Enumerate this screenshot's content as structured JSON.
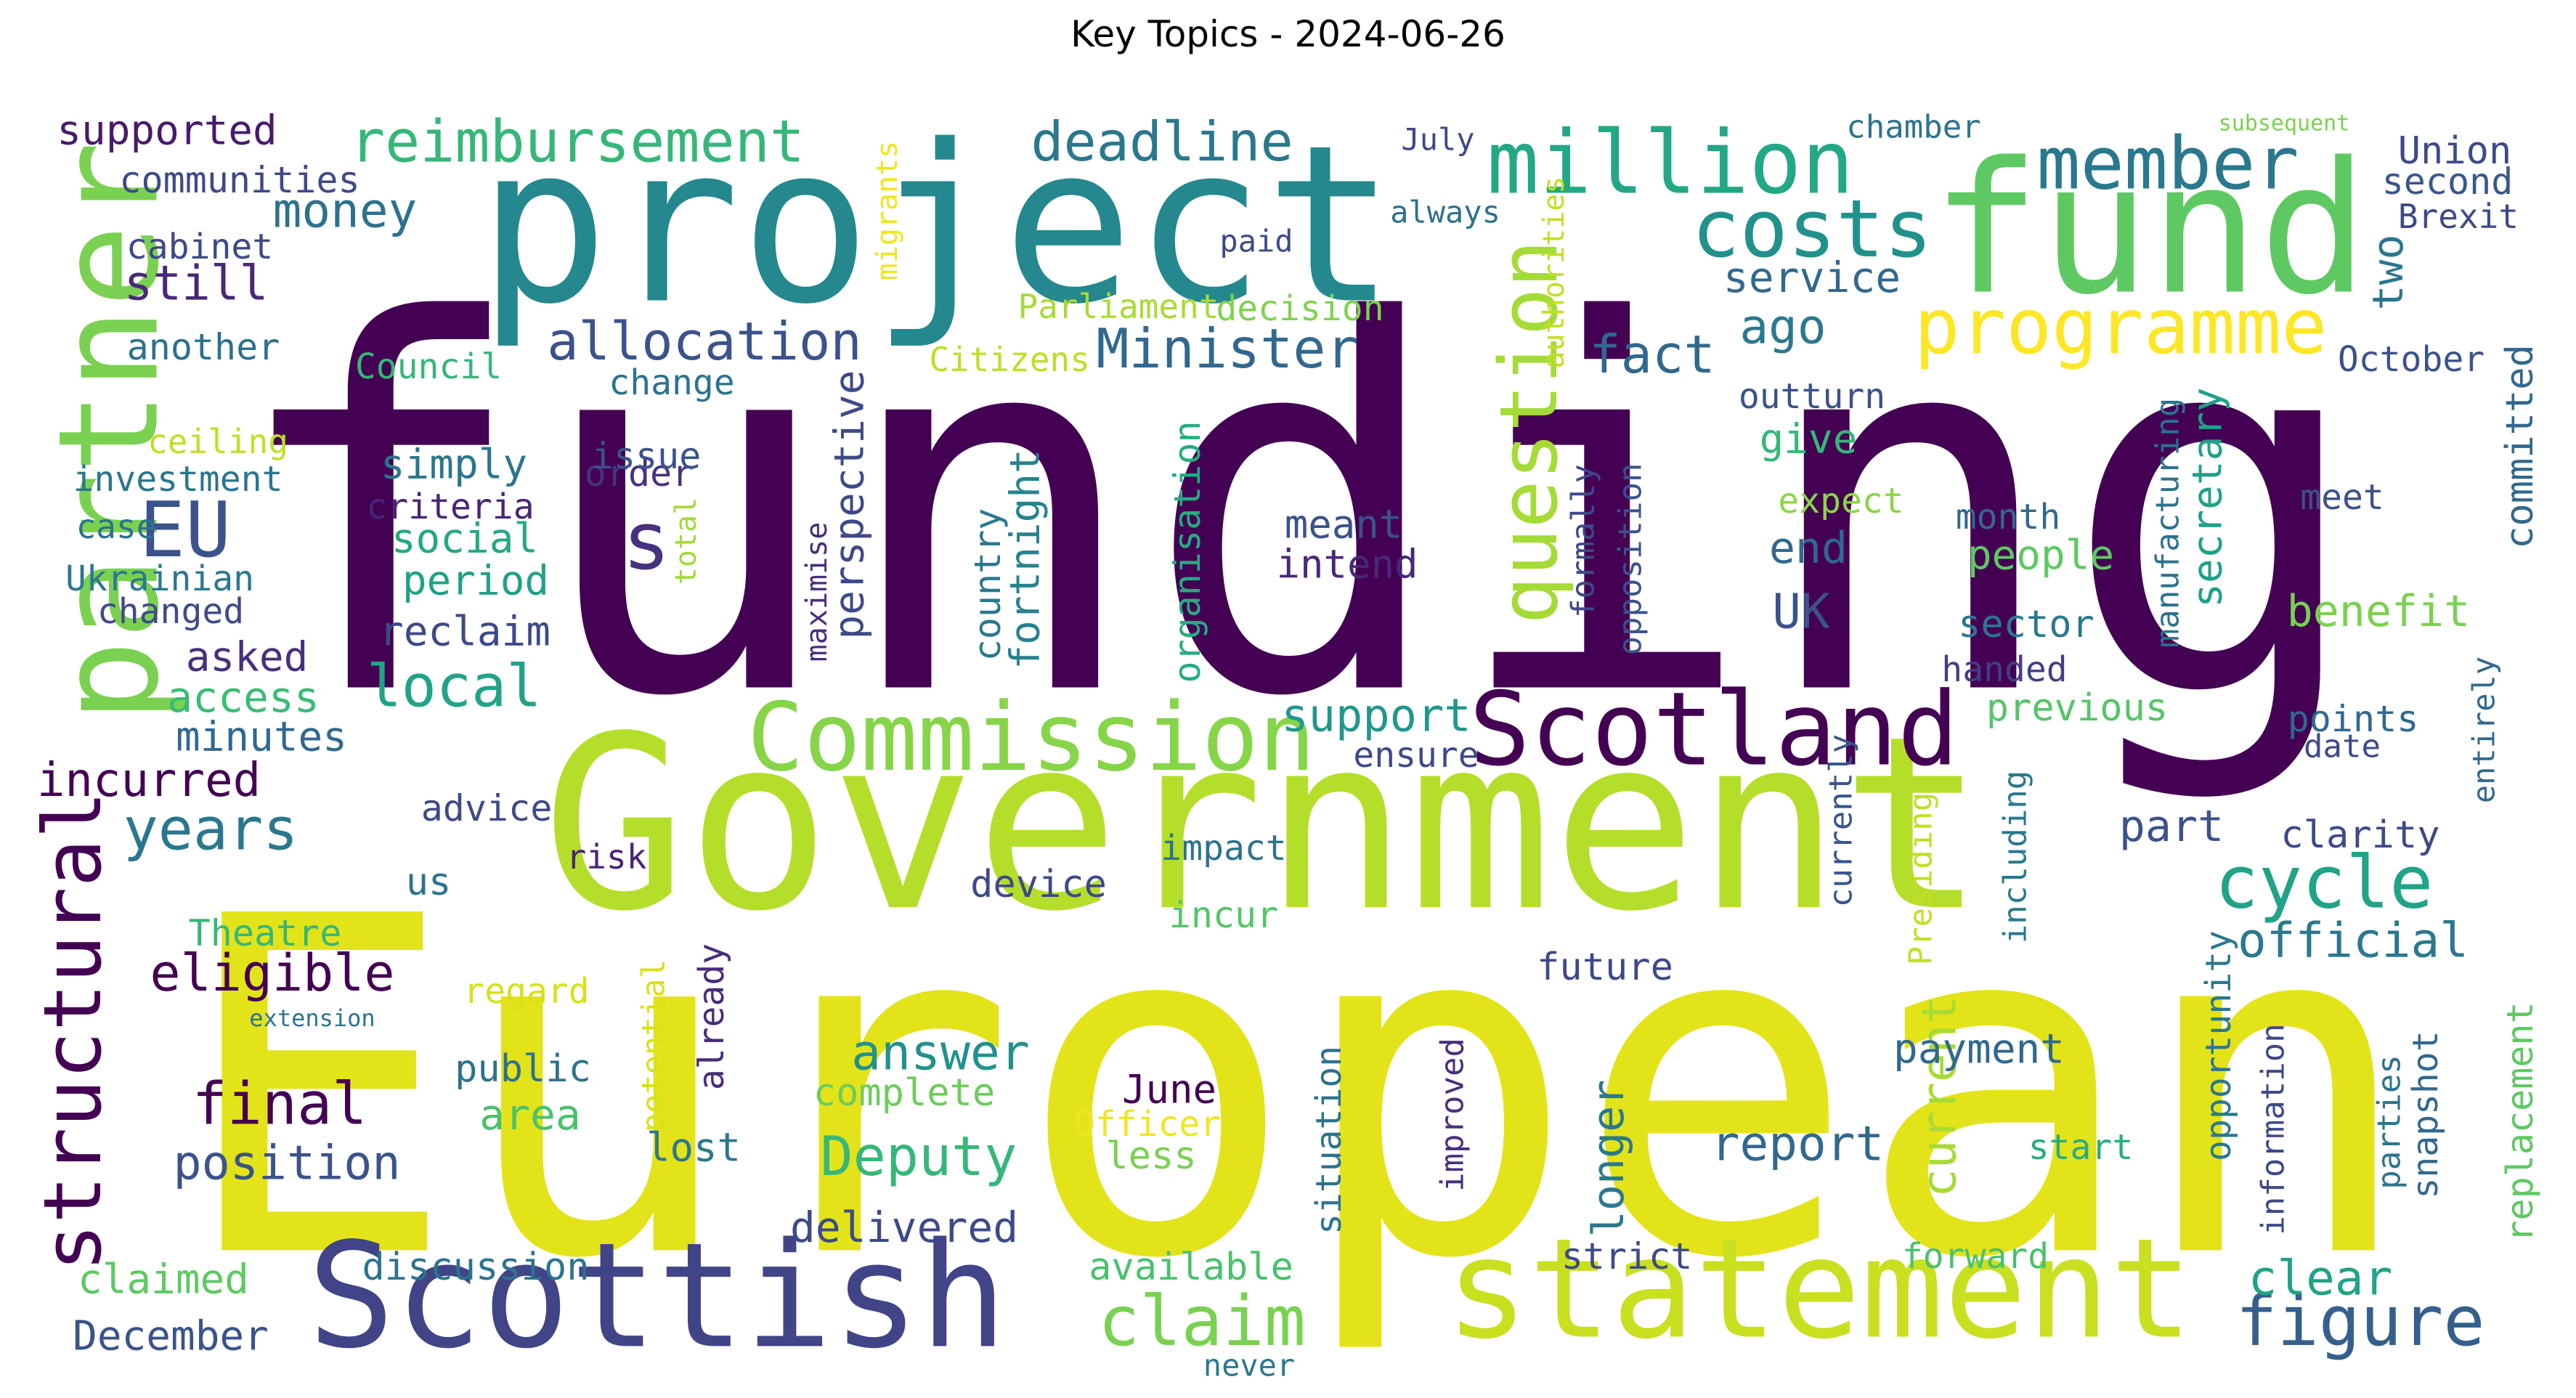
{
  "title": "Key Topics - 2024-06-26",
  "words": [
    {
      "text": "funding",
      "color": "#440154"
    },
    {
      "text": "European",
      "color": "#e3e31a"
    },
    {
      "text": "Government",
      "color": "#b5de2b"
    },
    {
      "text": "project",
      "color": "#24888e"
    },
    {
      "text": "fund",
      "color": "#5ec962"
    },
    {
      "text": "partner",
      "color": "#7ad151"
    },
    {
      "text": "Scottish",
      "color": "#414487"
    },
    {
      "text": "statement",
      "color": "#c8e020"
    },
    {
      "text": "Commission",
      "color": "#86d549"
    },
    {
      "text": "Scotland",
      "color": "#440154"
    },
    {
      "text": "million",
      "color": "#22a884"
    },
    {
      "text": "member",
      "color": "#2a788e"
    },
    {
      "text": "costs",
      "color": "#21918c"
    },
    {
      "text": "question",
      "color": "#a5db36"
    },
    {
      "text": "structural",
      "color": "#440154"
    },
    {
      "text": "programme",
      "color": "#fde725"
    },
    {
      "text": "cycle",
      "color": "#20a386"
    },
    {
      "text": "figure",
      "color": "#355f8d"
    },
    {
      "text": "claim",
      "color": "#7ad151"
    },
    {
      "text": "reimbursement",
      "color": "#35b779"
    },
    {
      "text": "deadline",
      "color": "#2a788e"
    },
    {
      "text": "EU",
      "color": "#3b528b"
    },
    {
      "text": "s",
      "color": "#46327e"
    },
    {
      "text": "Minister",
      "color": "#31688e"
    },
    {
      "text": "allocation",
      "color": "#3b528b"
    },
    {
      "text": "fact",
      "color": "#31688e"
    },
    {
      "text": "money",
      "color": "#2c728e"
    },
    {
      "text": "supported",
      "color": "#481a6c"
    },
    {
      "text": "communities",
      "color": "#3e4a89"
    },
    {
      "text": "cabinet",
      "color": "#3e4989"
    },
    {
      "text": "still",
      "color": "#482878"
    },
    {
      "text": "another",
      "color": "#2d708e"
    },
    {
      "text": "Council",
      "color": "#35b779"
    },
    {
      "text": "Citizens",
      "color": "#bddf26"
    },
    {
      "text": "Parliament",
      "color": "#a8db34"
    },
    {
      "text": "decision",
      "color": "#7fd34e"
    },
    {
      "text": "migrants",
      "color": "#f1e51d"
    },
    {
      "text": "July",
      "color": "#3f4889"
    },
    {
      "text": "paid",
      "color": "#3e4a89"
    },
    {
      "text": "always",
      "color": "#2d708e"
    },
    {
      "text": "chamber",
      "color": "#2c738e"
    },
    {
      "text": "subsequent",
      "color": "#7ad151"
    },
    {
      "text": "Union",
      "color": "#3e4989"
    },
    {
      "text": "second",
      "color": "#39568c"
    },
    {
      "text": "Brexit",
      "color": "#3e4989"
    },
    {
      "text": "two",
      "color": "#2a768e"
    },
    {
      "text": "October",
      "color": "#3b528b"
    },
    {
      "text": "committed",
      "color": "#31688e"
    },
    {
      "text": "service",
      "color": "#31688e"
    },
    {
      "text": "ago",
      "color": "#2a788e"
    },
    {
      "text": "authorities",
      "color": "#c2df23"
    },
    {
      "text": "ceiling",
      "color": "#c0df25"
    },
    {
      "text": "investment",
      "color": "#2a768e"
    },
    {
      "text": "case",
      "color": "#2c728e"
    },
    {
      "text": "Ukrainian",
      "color": "#2a788e"
    },
    {
      "text": "changed",
      "color": "#3e4a89"
    },
    {
      "text": "asked",
      "color": "#472f7d"
    },
    {
      "text": "access",
      "color": "#3bbb75"
    },
    {
      "text": "minutes",
      "color": "#31688e"
    },
    {
      "text": "incurred",
      "color": "#440154"
    },
    {
      "text": "years",
      "color": "#2a788e"
    },
    {
      "text": "eligible",
      "color": "#440154"
    },
    {
      "text": "final",
      "color": "#440154"
    },
    {
      "text": "position",
      "color": "#3b528b"
    },
    {
      "text": "local",
      "color": "#20a386"
    },
    {
      "text": "simply",
      "color": "#2a768e"
    },
    {
      "text": "criteria",
      "color": "#482576"
    },
    {
      "text": "social",
      "color": "#22a884"
    },
    {
      "text": "period",
      "color": "#1fa187"
    },
    {
      "text": "reclaim",
      "color": "#3e4989"
    },
    {
      "text": "order",
      "color": "#46337f"
    },
    {
      "text": "issue",
      "color": "#3b528b"
    },
    {
      "text": "change",
      "color": "#2c738e"
    },
    {
      "text": "total",
      "color": "#a2da37"
    },
    {
      "text": "maximise",
      "color": "#472d7b"
    },
    {
      "text": "perspective",
      "color": "#3e4989"
    },
    {
      "text": "country",
      "color": "#2a788e"
    },
    {
      "text": "fortnight",
      "color": "#26828e"
    },
    {
      "text": "organisation",
      "color": "#25ac82"
    },
    {
      "text": "meant",
      "color": "#3b528b"
    },
    {
      "text": "intend",
      "color": "#482878"
    },
    {
      "text": "formally",
      "color": "#3e4989"
    },
    {
      "text": "opposition",
      "color": "#3b528b"
    },
    {
      "text": "give",
      "color": "#35b779"
    },
    {
      "text": "outturn",
      "color": "#3b528b"
    },
    {
      "text": "expect",
      "color": "#8bd646"
    },
    {
      "text": "end",
      "color": "#31688e"
    },
    {
      "text": "UK",
      "color": "#3b528b"
    },
    {
      "text": "manufacturing",
      "color": "#2c728e"
    },
    {
      "text": "secretary",
      "color": "#1fa088"
    },
    {
      "text": "month",
      "color": "#31688e"
    },
    {
      "text": "people",
      "color": "#5ec962"
    },
    {
      "text": "sector",
      "color": "#2a788e"
    },
    {
      "text": "handed",
      "color": "#433e85"
    },
    {
      "text": "benefit",
      "color": "#7ad151"
    },
    {
      "text": "meet",
      "color": "#3b528b"
    },
    {
      "text": "previous",
      "color": "#54c568"
    },
    {
      "text": "points",
      "color": "#31688e"
    },
    {
      "text": "date",
      "color": "#3e4a89"
    },
    {
      "text": "entirely",
      "color": "#31688e"
    },
    {
      "text": "support",
      "color": "#1f988b"
    },
    {
      "text": "ensure",
      "color": "#3e4989"
    },
    {
      "text": "advice",
      "color": "#3e4989"
    },
    {
      "text": "risk",
      "color": "#482475"
    },
    {
      "text": "us",
      "color": "#2c738e"
    },
    {
      "text": "impact",
      "color": "#2c738e"
    },
    {
      "text": "device",
      "color": "#3e4989"
    },
    {
      "text": "incur",
      "color": "#54c568"
    },
    {
      "text": "currently",
      "color": "#39568c"
    },
    {
      "text": "Presiding",
      "color": "#c2df23"
    },
    {
      "text": "including",
      "color": "#2a788e"
    },
    {
      "text": "part",
      "color": "#3b528b"
    },
    {
      "text": "clarity",
      "color": "#3e4989"
    },
    {
      "text": "official",
      "color": "#2a788e"
    },
    {
      "text": "Theatre",
      "color": "#35b779"
    },
    {
      "text": "extension",
      "color": "#2c738e"
    },
    {
      "text": "regard",
      "color": "#d5e21a"
    },
    {
      "text": "public",
      "color": "#2c728e"
    },
    {
      "text": "area",
      "color": "#4ac16d"
    },
    {
      "text": "potential",
      "color": "#d8e219"
    },
    {
      "text": "already",
      "color": "#472c7a"
    },
    {
      "text": "answer",
      "color": "#21918c"
    },
    {
      "text": "complete",
      "color": "#6ccd5a"
    },
    {
      "text": "Deputy",
      "color": "#35b779"
    },
    {
      "text": "June",
      "color": "#440154"
    },
    {
      "text": "Officer",
      "color": "#f1e51d"
    },
    {
      "text": "less",
      "color": "#7ad151"
    },
    {
      "text": "lost",
      "color": "#2a788e"
    },
    {
      "text": "delivered",
      "color": "#3e4989"
    },
    {
      "text": "future",
      "color": "#3e4989"
    },
    {
      "text": "improved",
      "color": "#472f7d"
    },
    {
      "text": "situation",
      "color": "#2c728e"
    },
    {
      "text": "longer",
      "color": "#2a788e"
    },
    {
      "text": "current",
      "color": "#a8db34"
    },
    {
      "text": "report",
      "color": "#31688e"
    },
    {
      "text": "payment",
      "color": "#31688e"
    },
    {
      "text": "opportunity",
      "color": "#2a788e"
    },
    {
      "text": "information",
      "color": "#3e4989"
    },
    {
      "text": "parties",
      "color": "#2c738e"
    },
    {
      "text": "snapshot",
      "color": "#31688e"
    },
    {
      "text": "start",
      "color": "#27ad81"
    },
    {
      "text": "replacement",
      "color": "#5ec962"
    },
    {
      "text": "clear",
      "color": "#20a386"
    },
    {
      "text": "available",
      "color": "#4ac16d"
    },
    {
      "text": "strict",
      "color": "#3e4989"
    },
    {
      "text": "forward",
      "color": "#4ac16d"
    },
    {
      "text": "never",
      "color": "#2a788e"
    },
    {
      "text": "discussion",
      "color": "#2c738e"
    },
    {
      "text": "claimed",
      "color": "#5ec962"
    },
    {
      "text": "December",
      "color": "#3b528b"
    }
  ]
}
